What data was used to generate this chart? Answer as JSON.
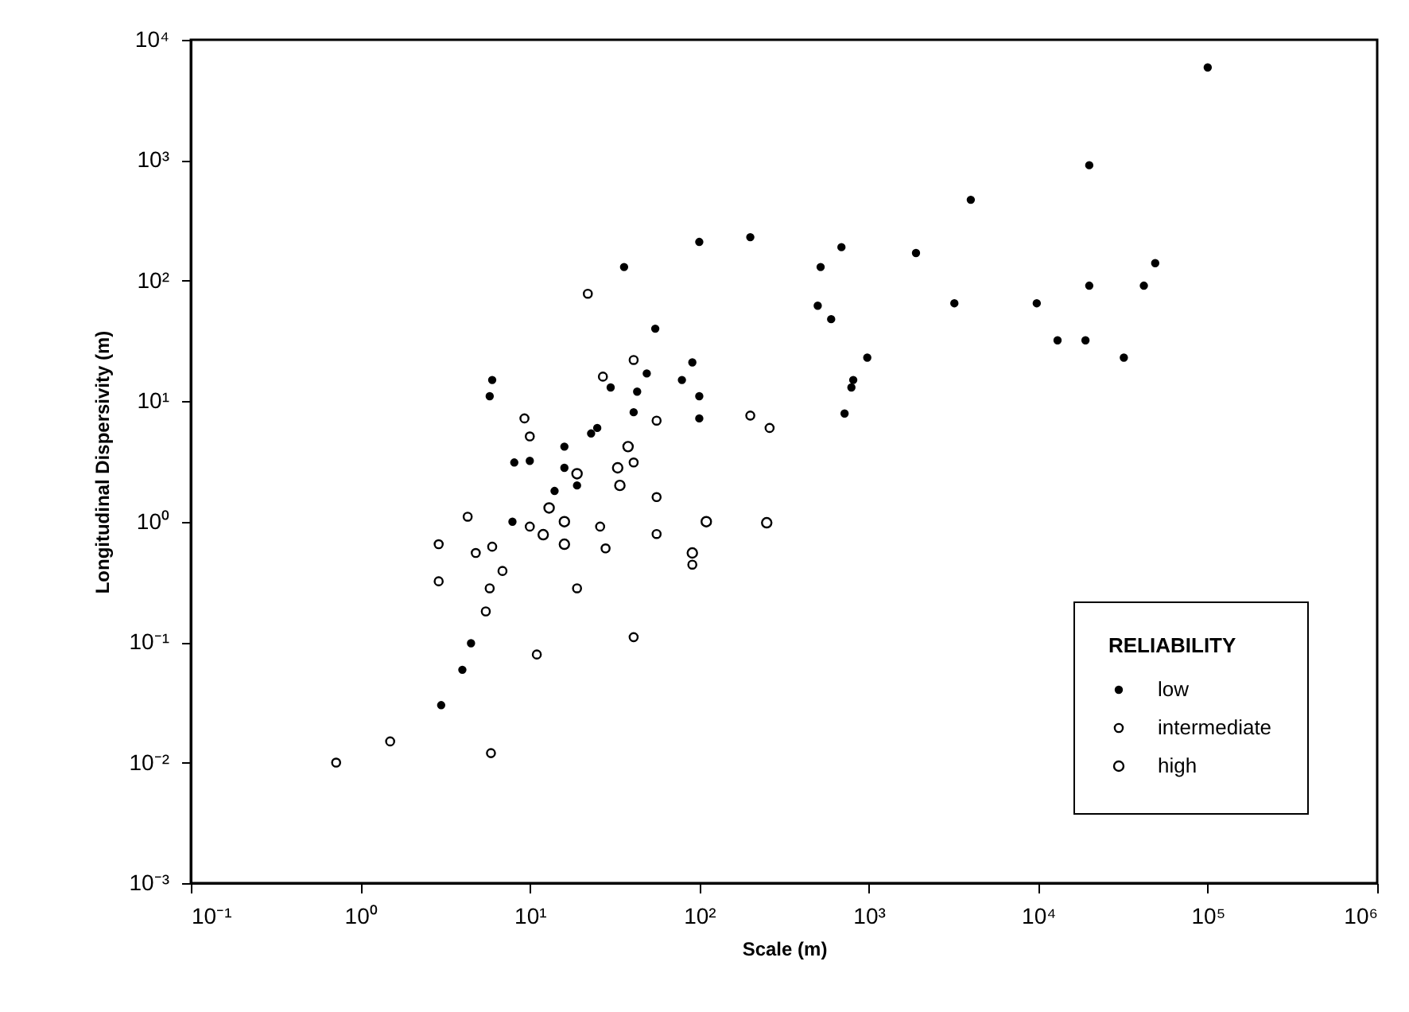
{
  "chart_data": {
    "type": "scatter",
    "xlabel": "Scale (m)",
    "ylabel": "Longitudinal Dispersivity (m)",
    "legend_title": "RELIABILITY",
    "log": "xy",
    "grid": false,
    "legend": "bottom right",
    "marker": "circle",
    "xlim": [
      0.1,
      1000000
    ],
    "ylim": [
      0.001,
      10000
    ],
    "xticks": [
      {
        "value": 0.1,
        "label": "10⁻¹"
      },
      {
        "value": 1,
        "label": "10⁰"
      },
      {
        "value": 10,
        "label": "10¹"
      },
      {
        "value": 100,
        "label": "10²"
      },
      {
        "value": 1000,
        "label": "10³"
      },
      {
        "value": 10000,
        "label": "10⁴"
      },
      {
        "value": 100000,
        "label": "10⁵"
      },
      {
        "value": 1000000,
        "label": "10⁶"
      }
    ],
    "yticks": [
      {
        "value": 0.001,
        "label": "10⁻³"
      },
      {
        "value": 0.01,
        "label": "10⁻²"
      },
      {
        "value": 0.1,
        "label": "10⁻¹"
      },
      {
        "value": 1,
        "label": "10⁰"
      },
      {
        "value": 10,
        "label": "10¹"
      },
      {
        "value": 100,
        "label": "10²"
      },
      {
        "value": 1000,
        "label": "10³"
      },
      {
        "value": 10000,
        "label": "10⁴"
      }
    ],
    "series": [
      {
        "name": "low",
        "color": "#000000",
        "x": [
          100000,
          20000,
          4000,
          1900,
          690,
          520,
          200,
          100,
          36,
          49000,
          42000,
          20000,
          9800,
          3200,
          32000,
          13000,
          19000,
          980,
          810,
          790,
          720,
          500,
          600,
          55,
          49,
          91,
          79,
          100,
          43,
          41,
          30,
          25,
          23,
          16,
          16,
          10,
          8.1,
          6.0,
          5.8,
          7.9,
          4.5,
          4.0,
          3.0,
          14,
          19,
          100
        ],
        "values": [
          5900,
          910,
          470,
          170,
          190,
          130,
          230,
          210,
          130,
          140,
          91,
          91,
          65,
          65,
          23,
          32,
          32,
          23,
          15,
          13,
          7.9,
          62,
          48,
          40,
          17,
          21,
          15,
          11,
          12,
          8.1,
          13,
          6.0,
          5.4,
          4.2,
          2.8,
          3.2,
          3.1,
          15,
          11,
          1.0,
          0.098,
          0.059,
          0.03,
          1.8,
          2.0,
          7.2
        ]
      },
      {
        "name": "intermediate",
        "color": "#000000",
        "x": [
          22,
          41,
          27,
          56,
          9.3,
          10,
          200,
          260,
          41,
          56,
          56,
          91,
          28,
          4.3,
          2.9,
          4.8,
          6.0,
          6.9,
          5.8,
          5.5,
          2.9,
          11,
          41,
          19,
          10,
          26,
          5.9,
          1.5,
          0.72
        ],
        "values": [
          78,
          22,
          16,
          6.9,
          7.2,
          5.1,
          7.6,
          6.0,
          3.1,
          1.6,
          0.79,
          0.44,
          0.6,
          1.1,
          0.65,
          0.55,
          0.62,
          0.39,
          0.28,
          0.18,
          0.32,
          0.079,
          0.11,
          0.28,
          0.91,
          0.91,
          0.012,
          0.015,
          0.01
        ]
      },
      {
        "name": "high",
        "color": "#000000",
        "x": [
          38,
          33,
          19,
          13,
          16,
          12,
          16,
          34,
          110,
          250,
          91
        ],
        "values": [
          4.2,
          2.8,
          2.5,
          1.3,
          1.0,
          0.78,
          0.65,
          2.0,
          1.0,
          0.98,
          0.55
        ]
      }
    ]
  }
}
